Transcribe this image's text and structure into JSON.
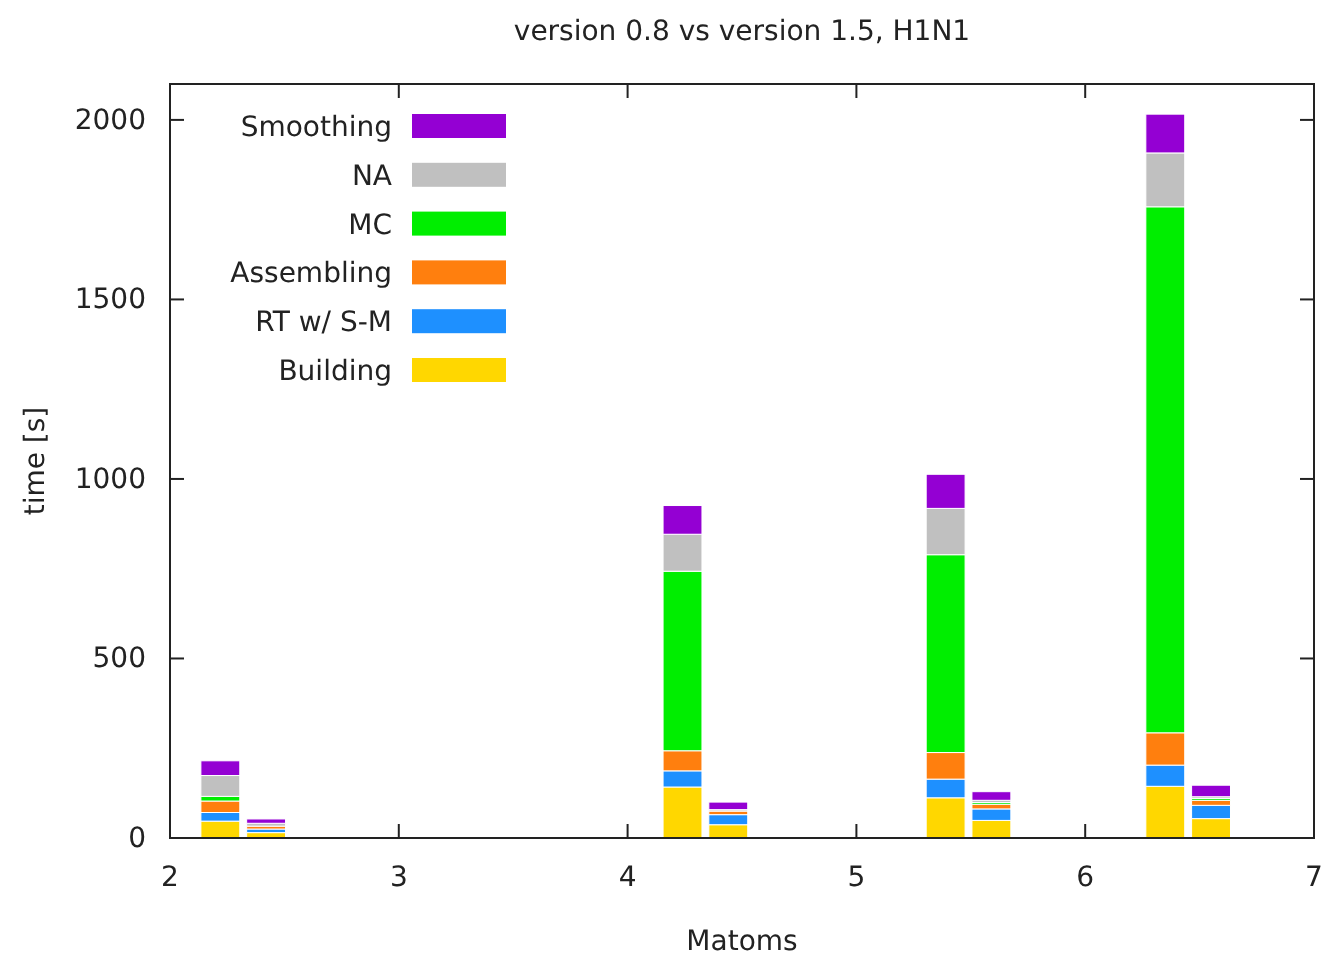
{
  "chart_data": {
    "type": "bar",
    "stacked": true,
    "title": "version 0.8 vs version 1.5, H1N1",
    "xlabel": "Matoms",
    "ylabel": "time [s]",
    "x": [
      2.22,
      2.42,
      4.24,
      4.44,
      5.39,
      5.59,
      6.35,
      6.55
    ],
    "xlim": [
      2,
      7
    ],
    "xticks": [
      2,
      3,
      4,
      5,
      6,
      7
    ],
    "ylim": [
      0,
      2100
    ],
    "yticks": [
      0,
      500,
      1000,
      1500,
      2000
    ],
    "grid": false,
    "legend": "top left",
    "series": [
      {
        "name": "Building",
        "color": "#ffd700",
        "values": [
          47,
          15,
          142,
          37,
          112,
          49,
          144,
          54
        ]
      },
      {
        "name": "RT w/ S-M",
        "color": "#1e90ff",
        "values": [
          24,
          10,
          45,
          28,
          52,
          32,
          59,
          37
        ]
      },
      {
        "name": "Assembling",
        "color": "#ff7f0e",
        "values": [
          32,
          8,
          56,
          10,
          74,
          13,
          90,
          14
        ]
      },
      {
        "name": "MC",
        "color": "#00ee00",
        "values": [
          13,
          null,
          500,
          null,
          551,
          5,
          1465,
          5
        ]
      },
      {
        "name": "NA",
        "color": "#c0c0c0",
        "values": [
          58,
          8,
          103,
          4,
          129,
          6,
          150,
          5
        ]
      },
      {
        "name": "Smoothing",
        "color": "#9400d3",
        "values": [
          41,
          12,
          80,
          21,
          95,
          24,
          108,
          32
        ]
      }
    ]
  }
}
